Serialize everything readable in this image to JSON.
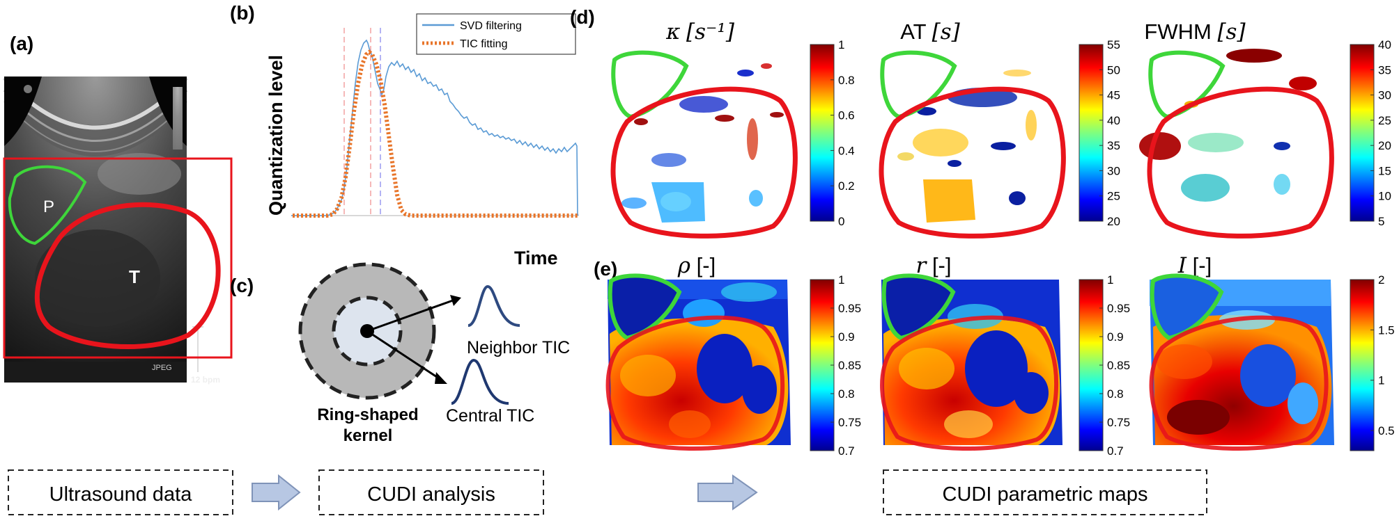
{
  "panels": {
    "a": {
      "label": "(a)",
      "p_label": "P",
      "t_label": "T",
      "jpeg_text": "JPEG",
      "bpm_text": "12 bpm"
    },
    "b": {
      "label": "(b)",
      "y_label": "Quantization level",
      "x_label": "Time",
      "legend": [
        "SVD filtering",
        "TIC fitting"
      ]
    },
    "c": {
      "label": "(c)",
      "neighbor_tic": "Neighbor TIC",
      "central_tic": "Central TIC",
      "kernel_line1": "Ring-shaped",
      "kernel_line2": "kernel"
    },
    "d": {
      "label": "(d)",
      "maps": [
        {
          "symbol": "κ",
          "unit": "[s⁻¹]",
          "ticks": [
            "1",
            "0.8",
            "0.6",
            "0.4",
            "0.2",
            "0"
          ]
        },
        {
          "symbol": "AT",
          "unit": "[s]",
          "ticks": [
            "55",
            "50",
            "45",
            "40",
            "35",
            "30",
            "25",
            "20"
          ]
        },
        {
          "symbol": "FWHM",
          "unit": "[s]",
          "ticks": [
            "40",
            "35",
            "30",
            "25",
            "20",
            "15",
            "10",
            "5"
          ]
        }
      ]
    },
    "e": {
      "label": "(e)",
      "maps": [
        {
          "symbol": "ρ",
          "unit": "[-]",
          "ticks": [
            "1",
            "0.95",
            "0.9",
            "0.85",
            "0.8",
            "0.75",
            "0.7"
          ]
        },
        {
          "symbol": "r",
          "unit": "[-]",
          "ticks": [
            "1",
            "0.95",
            "0.9",
            "0.85",
            "0.8",
            "0.75",
            "0.7"
          ]
        },
        {
          "symbol": "I",
          "unit": "[-]",
          "ticks": [
            "2",
            "1.5",
            "1",
            "0.5"
          ]
        }
      ]
    }
  },
  "workflow": [
    "Ultrasound data",
    "CUDI analysis",
    "CUDI parametric maps"
  ],
  "colors": {
    "roi_tumor": "#e8141c",
    "roi_p": "#3ed63a",
    "arrow_fill": "#b7c7e3",
    "arrow_stroke": "#7f93b8",
    "svd_line": "#5b9bd5",
    "tic_line": "#e8752a"
  }
}
